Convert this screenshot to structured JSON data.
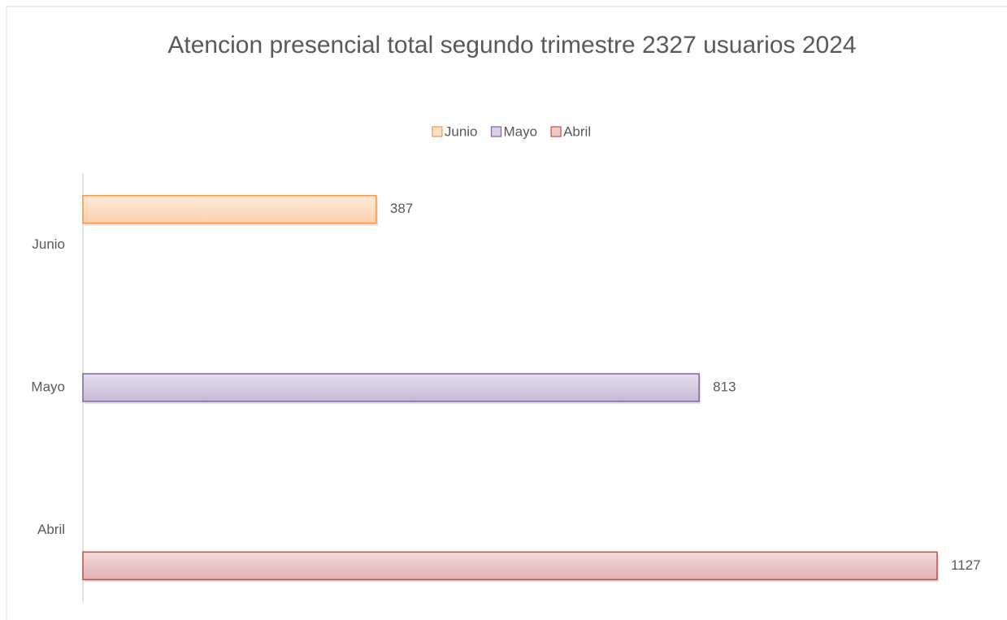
{
  "chart_data": {
    "type": "bar",
    "orientation": "horizontal",
    "title": "Atencion presencial total segundo trimestre 2327 usuarios 2024",
    "categories": [
      "Junio",
      "Mayo",
      "Abril"
    ],
    "series": [
      {
        "name": "Junio",
        "color": "#f79646",
        "values": [
          387,
          null,
          null
        ]
      },
      {
        "name": "Mayo",
        "color": "#8064a2",
        "values": [
          null,
          813,
          null
        ]
      },
      {
        "name": "Abril",
        "color": "#c0504d",
        "values": [
          null,
          null,
          1127
        ]
      }
    ],
    "legend": "top",
    "grid": false
  }
}
